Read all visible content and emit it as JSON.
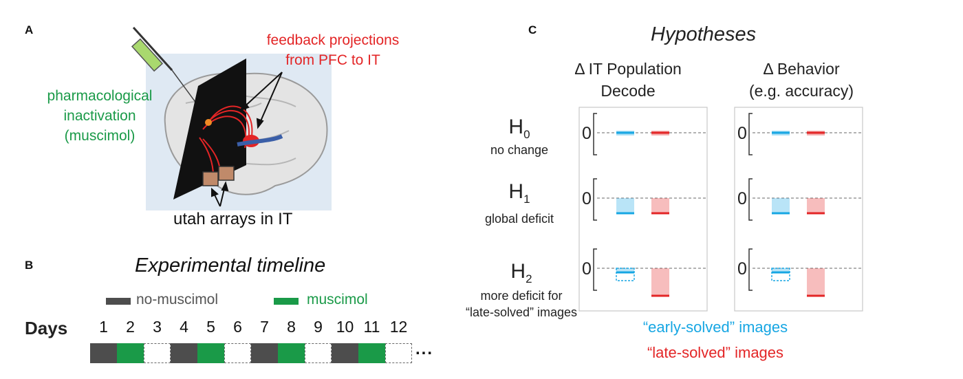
{
  "panel_a": {
    "letter": "A",
    "feedback_label": [
      "feedback projections",
      "from PFC to IT"
    ],
    "inactivation_label": [
      "pharmacological",
      "inactivation",
      "(muscimol)"
    ],
    "arrays_label": "utah arrays in IT",
    "colors": {
      "red": "#e32526",
      "green": "#1a9a48"
    }
  },
  "panel_b": {
    "letter": "B",
    "title": "Experimental timeline",
    "legend": [
      {
        "label": "no-muscimol",
        "color": "#4d4d4d"
      },
      {
        "label": "muscimol",
        "color": "#1a9a48"
      }
    ],
    "days_label": "Days",
    "days": [
      "1",
      "2",
      "3",
      "4",
      "5",
      "6",
      "7",
      "8",
      "9",
      "10",
      "11",
      "12"
    ],
    "condition_sequence": [
      "no-muscimol",
      "muscimol",
      "none",
      "no-muscimol",
      "muscimol",
      "none",
      "no-muscimol",
      "muscimol",
      "none",
      "no-muscimol",
      "muscimol",
      "none"
    ],
    "ellipsis": "..."
  },
  "panel_c": {
    "letter": "C",
    "title": "Hypotheses",
    "columns": [
      [
        "Δ IT Population",
        "Decode"
      ],
      [
        "Δ Behavior",
        "(e.g. accuracy)"
      ]
    ],
    "hypotheses": [
      {
        "symbol": "H",
        "subscript": "0",
        "description": [
          "no change"
        ]
      },
      {
        "symbol": "H",
        "subscript": "1",
        "description": [
          "global deficit"
        ]
      },
      {
        "symbol": "H",
        "subscript": "2",
        "description": [
          "more deficit for",
          "“late-solved” images"
        ]
      }
    ],
    "zero_label": "0",
    "legend": [
      {
        "label": "“early-solved” images",
        "color": "#16a6e3"
      },
      {
        "label": "“late-solved” images",
        "color": "#e32526"
      }
    ]
  }
}
